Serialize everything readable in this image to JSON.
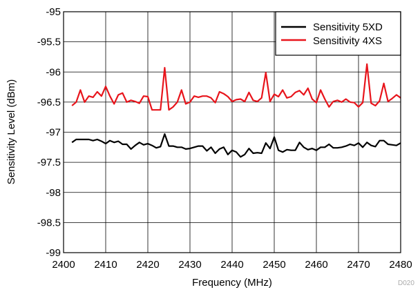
{
  "chart_data": {
    "type": "line",
    "xlabel": "Frequency (MHz)",
    "ylabel": "Sensitivity Level (dBm)",
    "xlim": [
      2400,
      2480
    ],
    "ylim": [
      -99,
      -95
    ],
    "xticks": [
      "2400",
      "2410",
      "2420",
      "2430",
      "2440",
      "2450",
      "2460",
      "2470",
      "2480"
    ],
    "yticks": [
      "-95",
      "-95.5",
      "-96",
      "-96.5",
      "-97",
      "-97.5",
      "-98",
      "-98.5",
      "-99"
    ],
    "grid": true,
    "legend_position": "top-right",
    "code_label": "D020",
    "x": [
      2402,
      2403,
      2404,
      2405,
      2406,
      2407,
      2408,
      2409,
      2410,
      2411,
      2412,
      2413,
      2414,
      2415,
      2416,
      2417,
      2418,
      2419,
      2420,
      2421,
      2422,
      2423,
      2424,
      2425,
      2426,
      2427,
      2428,
      2429,
      2430,
      2431,
      2432,
      2433,
      2434,
      2435,
      2436,
      2437,
      2438,
      2439,
      2440,
      2441,
      2442,
      2443,
      2444,
      2445,
      2446,
      2447,
      2448,
      2449,
      2450,
      2451,
      2452,
      2453,
      2454,
      2455,
      2456,
      2457,
      2458,
      2459,
      2460,
      2461,
      2462,
      2463,
      2464,
      2465,
      2466,
      2467,
      2468,
      2469,
      2470,
      2471,
      2472,
      2473,
      2474,
      2475,
      2476,
      2477,
      2478,
      2479,
      2480
    ],
    "series": [
      {
        "name": "Sensitivity 5XD",
        "color": "#000000",
        "values": [
          -97.17,
          -97.12,
          -97.12,
          -97.12,
          -97.12,
          -97.14,
          -97.12,
          -97.15,
          -97.19,
          -97.14,
          -97.17,
          -97.15,
          -97.2,
          -97.2,
          -97.28,
          -97.22,
          -97.17,
          -97.21,
          -97.19,
          -97.22,
          -97.26,
          -97.24,
          -97.03,
          -97.23,
          -97.23,
          -97.25,
          -97.25,
          -97.28,
          -97.27,
          -97.25,
          -97.23,
          -97.23,
          -97.31,
          -97.25,
          -97.35,
          -97.28,
          -97.25,
          -97.37,
          -97.3,
          -97.33,
          -97.41,
          -97.37,
          -97.27,
          -97.35,
          -97.34,
          -97.35,
          -97.18,
          -97.27,
          -97.08,
          -97.3,
          -97.33,
          -97.29,
          -97.3,
          -97.3,
          -97.17,
          -97.25,
          -97.29,
          -97.27,
          -97.3,
          -97.25,
          -97.25,
          -97.2,
          -97.26,
          -97.26,
          -97.25,
          -97.23,
          -97.2,
          -97.22,
          -97.18,
          -97.25,
          -97.17,
          -97.22,
          -97.24,
          -97.14,
          -97.14,
          -97.2,
          -97.21,
          -97.22,
          -97.18
        ]
      },
      {
        "name": "Sensitivity 4XS",
        "color": "#e8141b",
        "values": [
          -96.56,
          -96.5,
          -96.3,
          -96.5,
          -96.4,
          -96.42,
          -96.33,
          -96.4,
          -96.24,
          -96.4,
          -96.53,
          -96.38,
          -96.35,
          -96.5,
          -96.47,
          -96.49,
          -96.52,
          -96.4,
          -96.41,
          -96.63,
          -96.63,
          -96.63,
          -95.93,
          -96.63,
          -96.58,
          -96.5,
          -96.3,
          -96.53,
          -96.5,
          -96.4,
          -96.42,
          -96.4,
          -96.4,
          -96.43,
          -96.51,
          -96.33,
          -96.36,
          -96.41,
          -96.49,
          -96.46,
          -96.45,
          -96.49,
          -96.34,
          -96.47,
          -96.49,
          -96.43,
          -96.01,
          -96.49,
          -96.37,
          -96.41,
          -96.3,
          -96.43,
          -96.41,
          -96.34,
          -96.31,
          -96.38,
          -96.27,
          -96.45,
          -96.51,
          -96.3,
          -96.45,
          -96.58,
          -96.49,
          -96.47,
          -96.5,
          -96.45,
          -96.5,
          -96.51,
          -96.58,
          -96.51,
          -95.87,
          -96.52,
          -96.56,
          -96.48,
          -96.19,
          -96.49,
          -96.44,
          -96.38,
          -96.43
        ]
      }
    ]
  }
}
